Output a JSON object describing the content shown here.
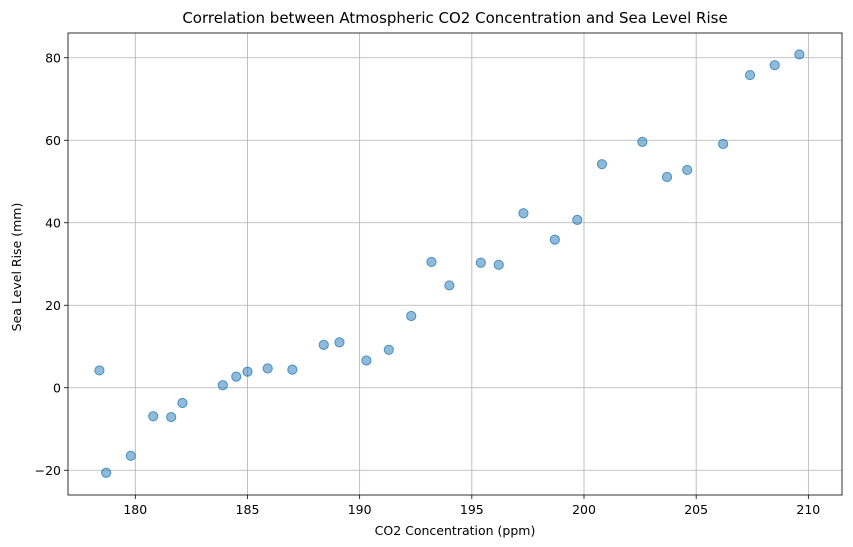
{
  "chart_data": {
    "type": "scatter",
    "title": "Correlation between Atmospheric CO2 Concentration and Sea Level Rise",
    "xlabel": "CO2 Concentration (ppm)",
    "ylabel": "Sea Level Rise (mm)",
    "xlim": [
      177,
      211.5
    ],
    "ylim": [
      -26,
      86
    ],
    "xticks": [
      180,
      185,
      190,
      195,
      200,
      205,
      210
    ],
    "yticks": [
      -20,
      0,
      20,
      40,
      60,
      80
    ],
    "grid": true,
    "color": "#1f77b4",
    "points": [
      {
        "x": 178.4,
        "y": 4.2
      },
      {
        "x": 178.7,
        "y": -20.6
      },
      {
        "x": 179.8,
        "y": -16.5
      },
      {
        "x": 180.8,
        "y": -6.9
      },
      {
        "x": 181.6,
        "y": -7.1
      },
      {
        "x": 182.1,
        "y": -3.7
      },
      {
        "x": 183.9,
        "y": 0.6
      },
      {
        "x": 184.5,
        "y": 2.7
      },
      {
        "x": 185.0,
        "y": 3.9
      },
      {
        "x": 185.9,
        "y": 4.7
      },
      {
        "x": 187.0,
        "y": 4.4
      },
      {
        "x": 188.4,
        "y": 10.4
      },
      {
        "x": 189.1,
        "y": 11.0
      },
      {
        "x": 190.3,
        "y": 6.6
      },
      {
        "x": 191.3,
        "y": 9.2
      },
      {
        "x": 192.3,
        "y": 17.4
      },
      {
        "x": 193.2,
        "y": 30.5
      },
      {
        "x": 194.0,
        "y": 24.8
      },
      {
        "x": 195.4,
        "y": 30.3
      },
      {
        "x": 196.2,
        "y": 29.8
      },
      {
        "x": 197.3,
        "y": 42.3
      },
      {
        "x": 198.7,
        "y": 35.9
      },
      {
        "x": 199.7,
        "y": 40.7
      },
      {
        "x": 200.8,
        "y": 54.2
      },
      {
        "x": 202.6,
        "y": 59.6
      },
      {
        "x": 203.7,
        "y": 51.1
      },
      {
        "x": 204.6,
        "y": 52.8
      },
      {
        "x": 206.2,
        "y": 59.1
      },
      {
        "x": 207.4,
        "y": 75.8
      },
      {
        "x": 208.5,
        "y": 78.2
      },
      {
        "x": 209.6,
        "y": 80.8
      }
    ]
  }
}
